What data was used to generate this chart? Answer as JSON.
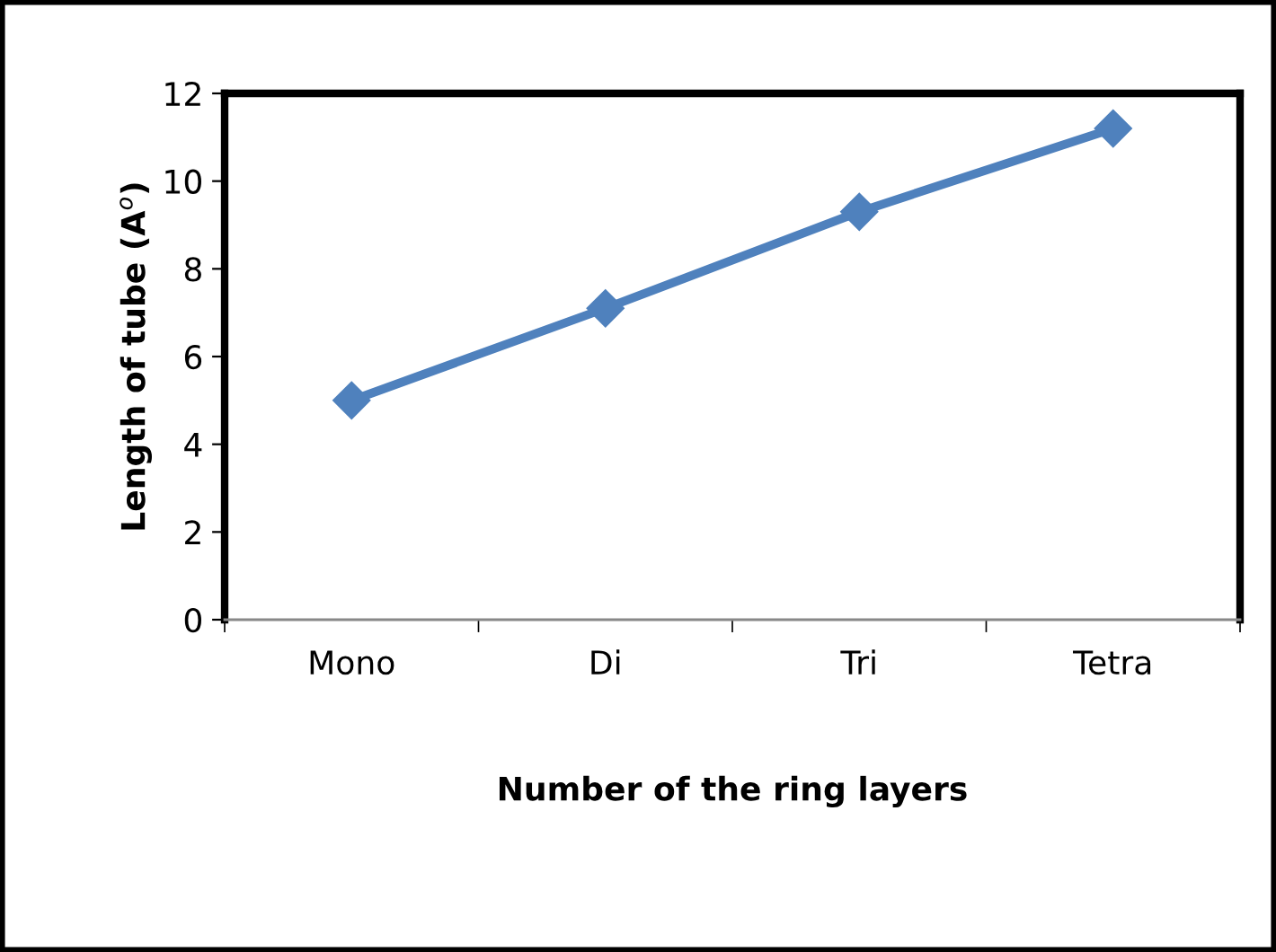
{
  "chart_data": {
    "type": "line",
    "xlabel": "Number of the ring layers",
    "ylabel": "Length of tube (A$^{o}$)",
    "categories": [
      "Mono",
      "Di",
      "Tri",
      "Tetra"
    ],
    "series": [
      {
        "color": "#4f81bd",
        "values": [
          5.0,
          7.1,
          9.3,
          11.2
        ]
      }
    ],
    "ylim": [
      0,
      12
    ],
    "yticks": [
      0,
      2,
      4,
      6,
      8,
      10,
      12
    ],
    "grid": false,
    "legend": false,
    "marker": "diamond",
    "line_style": "solid"
  }
}
